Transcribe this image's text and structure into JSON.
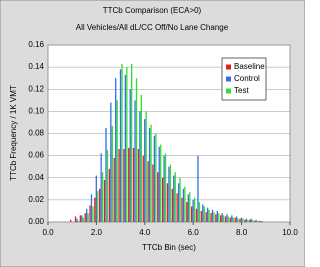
{
  "chart_data": {
    "type": "bar",
    "title": "TTCb Comparison (ECA>0)",
    "subtitle": "All Vehicles/All dL/CC Off/No Lane Change",
    "x_label": "TTCb Bin (sec)",
    "y_label": "TTCb Frequency / 1K VMT",
    "x": [
      1.0,
      1.2,
      1.4,
      1.6,
      1.8,
      2.0,
      2.2,
      2.4,
      2.6,
      2.8,
      3.0,
      3.2,
      3.4,
      3.6,
      3.8,
      4.0,
      4.2,
      4.4,
      4.6,
      4.8,
      5.0,
      5.2,
      5.4,
      5.6,
      5.8,
      6.0,
      6.2,
      6.4,
      6.6,
      6.8,
      7.0,
      7.2,
      7.4,
      7.6,
      7.8,
      8.0,
      8.2,
      8.4,
      8.6,
      8.8
    ],
    "series": [
      {
        "name": "Baseline",
        "color": "#e02020",
        "values": [
          0.002,
          0.005,
          0.006,
          0.008,
          0.015,
          0.022,
          0.03,
          0.038,
          0.048,
          0.058,
          0.066,
          0.066,
          0.067,
          0.067,
          0.066,
          0.06,
          0.055,
          0.052,
          0.045,
          0.04,
          0.035,
          0.03,
          0.026,
          0.022,
          0.018,
          0.014,
          0.012,
          0.01,
          0.009,
          0.008,
          0.007,
          0.006,
          0.005,
          0.004,
          0.004,
          0.003,
          0.002,
          0.002,
          0.001,
          0.001
        ]
      },
      {
        "name": "Control",
        "color": "#3a6ee8",
        "values": [
          0.0,
          0.003,
          0.006,
          0.012,
          0.025,
          0.042,
          0.062,
          0.085,
          0.108,
          0.13,
          0.138,
          0.133,
          0.12,
          0.11,
          0.1,
          0.093,
          0.085,
          0.078,
          0.068,
          0.06,
          0.05,
          0.042,
          0.035,
          0.03,
          0.025,
          0.02,
          0.06,
          0.016,
          0.013,
          0.011,
          0.01,
          0.008,
          0.007,
          0.006,
          0.005,
          0.004,
          0.003,
          0.003,
          0.002,
          0.001
        ]
      },
      {
        "name": "Test",
        "color": "#30e030",
        "values": [
          0.0,
          0.001,
          0.004,
          0.008,
          0.014,
          0.028,
          0.045,
          0.065,
          0.087,
          0.11,
          0.143,
          0.14,
          0.143,
          0.13,
          0.115,
          0.1,
          0.088,
          0.08,
          0.07,
          0.062,
          0.052,
          0.045,
          0.04,
          0.032,
          0.027,
          0.022,
          0.018,
          0.014,
          0.011,
          0.009,
          0.008,
          0.006,
          0.005,
          0.004,
          0.003,
          0.003,
          0.002,
          0.002,
          0.001,
          0.001
        ]
      }
    ],
    "xlim": [
      0,
      10
    ],
    "xticks": [
      {
        "value": 0,
        "label": "0.0"
      },
      {
        "value": 2,
        "label": "2.0"
      },
      {
        "value": 4,
        "label": "4.0"
      },
      {
        "value": 6,
        "label": "6.0"
      },
      {
        "value": 8,
        "label": "8.0"
      },
      {
        "value": 10,
        "label": "10.0"
      }
    ],
    "ylim": [
      0,
      0.16
    ],
    "yticks": [
      {
        "value": 0,
        "label": "0.00"
      },
      {
        "value": 0.02,
        "label": "0.02"
      },
      {
        "value": 0.04,
        "label": "0.04"
      },
      {
        "value": 0.06,
        "label": "0.06"
      },
      {
        "value": 0.08,
        "label": "0.08"
      },
      {
        "value": 0.1,
        "label": "0.10"
      },
      {
        "value": 0.12,
        "label": "0.12"
      },
      {
        "value": 0.14,
        "label": "0.14"
      },
      {
        "value": 0.16,
        "label": "0.16"
      }
    ],
    "grid": true,
    "legend": "upper right"
  }
}
